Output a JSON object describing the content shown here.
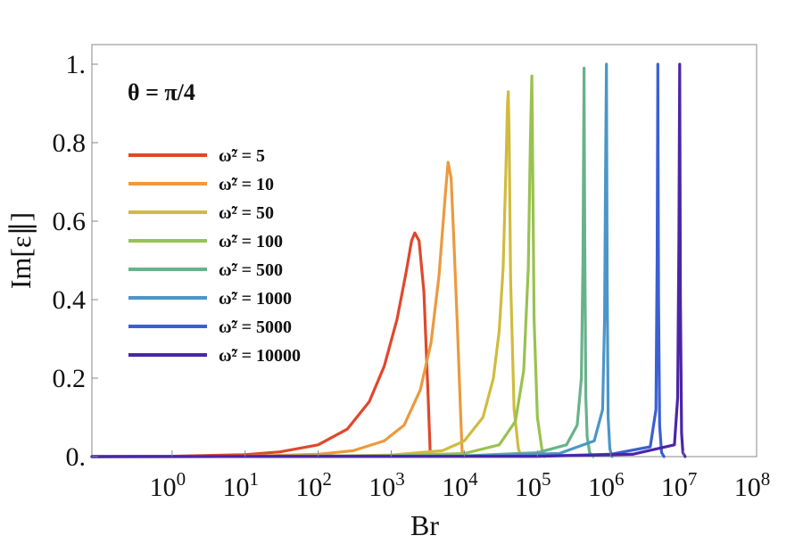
{
  "chart_data": {
    "type": "line",
    "xlabel": "Br",
    "ylabel": "Im[ε∥]",
    "x_scale": "log",
    "xlim": [
      0.08,
      100000000
    ],
    "ylim": [
      0,
      1.05
    ],
    "xticks": [
      {
        "value": 1,
        "base": "10",
        "exp": "0"
      },
      {
        "value": 10,
        "base": "10",
        "exp": "1"
      },
      {
        "value": 100,
        "base": "10",
        "exp": "2"
      },
      {
        "value": 1000,
        "base": "10",
        "exp": "3"
      },
      {
        "value": 10000,
        "base": "10",
        "exp": "4"
      },
      {
        "value": 100000,
        "base": "10",
        "exp": "5"
      },
      {
        "value": 1000000,
        "base": "10",
        "exp": "6"
      },
      {
        "value": 10000000,
        "base": "10",
        "exp": "7"
      },
      {
        "value": 100000000,
        "base": "10",
        "exp": "8"
      }
    ],
    "yticks": [
      {
        "value": 0,
        "label": "0."
      },
      {
        "value": 0.2,
        "label": "0.2"
      },
      {
        "value": 0.4,
        "label": "0.4"
      },
      {
        "value": 0.6,
        "label": "0.6"
      },
      {
        "value": 0.8,
        "label": "0.8"
      },
      {
        "value": 1.0,
        "label": "1."
      }
    ],
    "annotation": "θ = π/4",
    "legend_position": "top-left",
    "grid": false,
    "series": [
      {
        "name": "ω̃² = 5",
        "color": "#e0472c",
        "x": [
          0.08,
          1,
          10,
          30,
          100,
          250,
          500,
          800,
          1200,
          1600,
          1900,
          2100,
          2400,
          2800,
          3200,
          3400,
          3450
        ],
        "y": [
          0.0,
          0.001,
          0.005,
          0.012,
          0.03,
          0.07,
          0.14,
          0.23,
          0.35,
          0.47,
          0.55,
          0.57,
          0.55,
          0.42,
          0.15,
          0.02,
          0.0
        ]
      },
      {
        "name": "ω̃² = 10",
        "color": "#eb9a3e",
        "x": [
          0.08,
          10,
          100,
          300,
          800,
          1500,
          2500,
          3500,
          4500,
          5500,
          6000,
          6600,
          7200,
          8000,
          8800,
          9300,
          9500
        ],
        "y": [
          0.0,
          0.001,
          0.006,
          0.015,
          0.04,
          0.08,
          0.17,
          0.29,
          0.46,
          0.67,
          0.75,
          0.71,
          0.55,
          0.34,
          0.13,
          0.02,
          0.0
        ]
      },
      {
        "name": "ω̃² = 50",
        "color": "#d1bb3f",
        "x": [
          0.08,
          100,
          1000,
          5000,
          10000,
          18000,
          25000,
          30000,
          34000,
          37000,
          39000,
          40000,
          41000,
          43000,
          48000,
          55000,
          60000
        ],
        "y": [
          0.0,
          0.001,
          0.004,
          0.015,
          0.04,
          0.1,
          0.2,
          0.32,
          0.48,
          0.72,
          0.9,
          0.93,
          0.82,
          0.45,
          0.12,
          0.02,
          0.0
        ]
      },
      {
        "name": "ω̃² = 100",
        "color": "#99c24f",
        "x": [
          0.08,
          1000,
          10000,
          30000,
          50000,
          65000,
          75000,
          80000,
          84000,
          86000,
          90000,
          100000,
          115000,
          125000
        ],
        "y": [
          0.0,
          0.002,
          0.008,
          0.03,
          0.09,
          0.22,
          0.48,
          0.8,
          0.97,
          0.78,
          0.35,
          0.1,
          0.02,
          0.0
        ]
      },
      {
        "name": "ω̃² = 500",
        "color": "#68b28a",
        "x": [
          0.08,
          10000,
          100000,
          250000,
          350000,
          400000,
          420000,
          435000,
          445000,
          460000,
          480000,
          520000,
          580000
        ],
        "y": [
          0.0,
          0.002,
          0.01,
          0.03,
          0.08,
          0.2,
          0.5,
          0.99,
          0.55,
          0.15,
          0.05,
          0.01,
          0.0
        ]
      },
      {
        "name": "ω̃² = 1000",
        "color": "#4b96c8",
        "x": [
          0.08,
          10000,
          200000,
          600000,
          780000,
          830000,
          860000,
          880000,
          900000,
          930000,
          980000,
          1050000
        ],
        "y": [
          0.0,
          0.001,
          0.008,
          0.04,
          0.12,
          0.35,
          0.75,
          1.0,
          0.45,
          0.1,
          0.02,
          0.0
        ]
      },
      {
        "name": "ω̃² = 5000",
        "color": "#3b5fd4",
        "x": [
          0.08,
          100000,
          1000000,
          3500000,
          4200000,
          4350000,
          4450000,
          4550000,
          4700000,
          5000000,
          5400000
        ],
        "y": [
          0.0,
          0.001,
          0.006,
          0.025,
          0.12,
          0.5,
          1.0,
          0.4,
          0.08,
          0.01,
          0.0
        ]
      },
      {
        "name": "ω̃² = 10000",
        "color": "#4b25a8",
        "x": [
          0.08,
          100000,
          2000000,
          7500000,
          8300000,
          8650000,
          8850000,
          9050000,
          9400000,
          9800000,
          10500000
        ],
        "y": [
          0.0,
          0.001,
          0.006,
          0.03,
          0.15,
          0.55,
          1.0,
          0.4,
          0.06,
          0.01,
          0.0
        ]
      }
    ]
  }
}
